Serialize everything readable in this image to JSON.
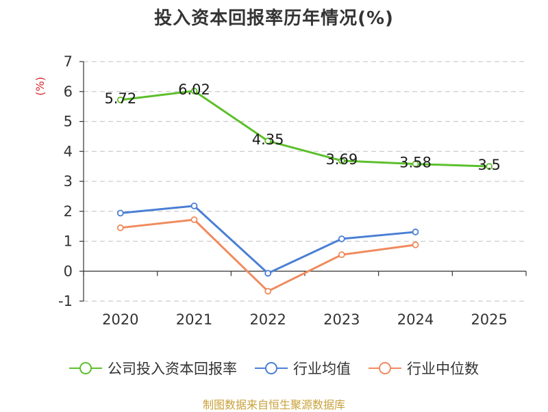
{
  "chart_data": {
    "type": "line",
    "title": "投入资本回报率历年情况(%)",
    "ylabel": "(%)",
    "xlabel": "",
    "categories": [
      "2020",
      "2021",
      "2022",
      "2023",
      "2024",
      "2025"
    ],
    "ylim": [
      -1,
      7
    ],
    "yticks": [
      7,
      6,
      5,
      4,
      3,
      2,
      1,
      0,
      -1
    ],
    "grid": true,
    "series": [
      {
        "name": "公司投入资本回报率",
        "color": "#5cbf2a",
        "values": [
          5.72,
          6.02,
          4.35,
          3.69,
          3.58,
          3.5
        ],
        "labels": [
          "5.72",
          "6.02",
          "4.35",
          "3.69",
          "3.58",
          "3.5"
        ]
      },
      {
        "name": "行业均值",
        "color": "#4a7fd4",
        "values": [
          1.94,
          2.18,
          -0.07,
          1.08,
          1.31,
          null
        ]
      },
      {
        "name": "行业中位数",
        "color": "#f08a5d",
        "values": [
          1.45,
          1.72,
          -0.67,
          0.55,
          0.88,
          null
        ]
      }
    ],
    "legend_position": "bottom"
  },
  "footer": {
    "source": "制图数据来自恒生聚源数据库"
  }
}
